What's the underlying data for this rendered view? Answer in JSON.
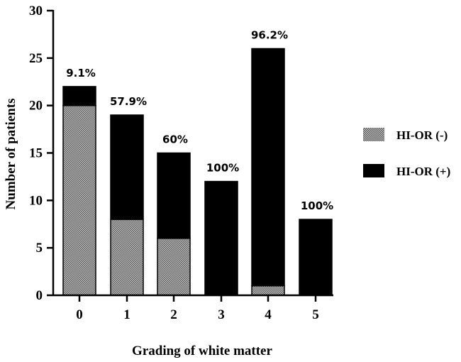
{
  "chart_data": {
    "type": "bar",
    "stacked": true,
    "categories": [
      "0",
      "1",
      "2",
      "3",
      "4",
      "5"
    ],
    "series": [
      {
        "name": "HI-OR (-)",
        "values": [
          20,
          8,
          6,
          0,
          1,
          0
        ],
        "pattern": "stipple",
        "color": "#9a9a9a"
      },
      {
        "name": "HI-OR (+)",
        "values": [
          2,
          11,
          9,
          12,
          25,
          8
        ],
        "pattern": "solid",
        "color": "#000000"
      }
    ],
    "data_labels": [
      "9.1%",
      "57.9%",
      "60%",
      "100%",
      "96.2%",
      "100%"
    ],
    "xlabel": "Grading of white matter",
    "ylabel": "Number of patients",
    "ylim": [
      0,
      30
    ],
    "yticks": [
      0,
      5,
      10,
      15,
      20,
      25,
      30
    ],
    "legend_position": "right",
    "grid": false
  }
}
